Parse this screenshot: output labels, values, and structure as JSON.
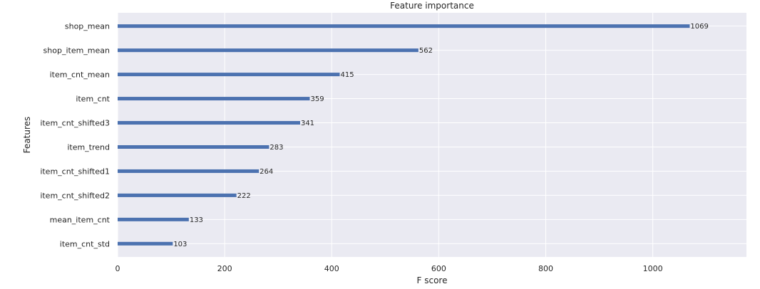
{
  "chart_data": {
    "type": "bar",
    "orientation": "horizontal",
    "title": "Feature importance",
    "xlabel": "F score",
    "ylabel": "Features",
    "xlim": [
      0,
      1175
    ],
    "xticks": [
      0,
      200,
      400,
      600,
      800,
      1000
    ],
    "grid": true,
    "categories": [
      "shop_mean",
      "shop_item_mean",
      "item_cnt_mean",
      "item_cnt",
      "item_cnt_shifted3",
      "item_trend",
      "item_cnt_shifted1",
      "item_cnt_shifted2",
      "mean_item_cnt",
      "item_cnt_std"
    ],
    "values": [
      1069,
      562,
      415,
      359,
      341,
      283,
      264,
      222,
      133,
      103
    ],
    "value_labels": [
      "1069",
      "562",
      "415",
      "359",
      "341",
      "283",
      "264",
      "222",
      "133",
      "103"
    ],
    "colors": {
      "bar": "#4c72b0",
      "plot_background": "#eaeaf2",
      "grid": "#ffffff",
      "text": "#262626"
    }
  }
}
